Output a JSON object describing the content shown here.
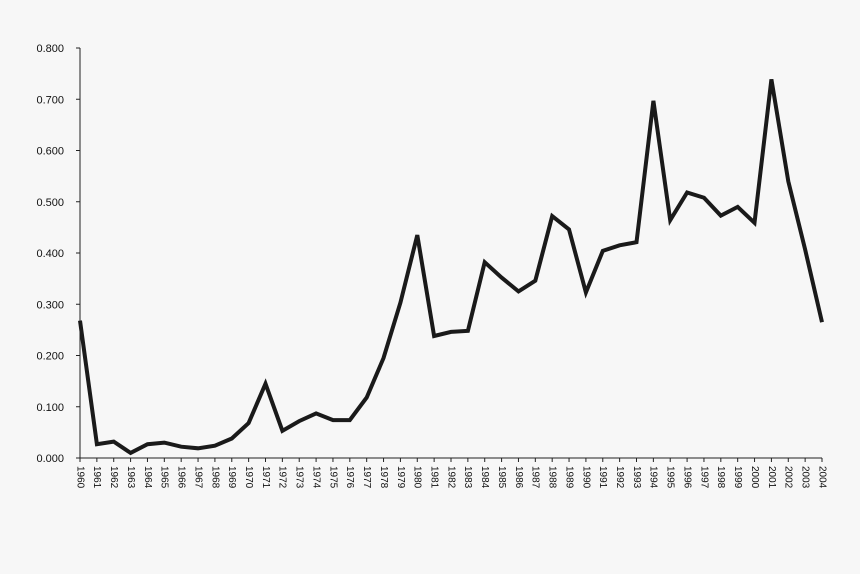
{
  "chart_data": {
    "type": "line",
    "title": "",
    "xlabel": "",
    "ylabel": "",
    "x": [
      "1960",
      "1961",
      "1962",
      "1963",
      "1964",
      "1965",
      "1966",
      "1967",
      "1968",
      "1969",
      "1970",
      "1971",
      "1972",
      "1973",
      "1974",
      "1975",
      "1976",
      "1977",
      "1978",
      "1979",
      "1980",
      "1981",
      "1982",
      "1983",
      "1984",
      "1985",
      "1986",
      "1987",
      "1988",
      "1989",
      "1990",
      "1991",
      "1992",
      "1993",
      "1994",
      "1995",
      "1996",
      "1997",
      "1998",
      "1999",
      "2000",
      "2001",
      "2002",
      "2003",
      "2004"
    ],
    "series": [
      {
        "values": [
          0.268,
          0.027,
          0.032,
          0.01,
          0.027,
          0.03,
          0.022,
          0.019,
          0.024,
          0.038,
          0.068,
          0.145,
          0.053,
          0.072,
          0.087,
          0.074,
          0.074,
          0.118,
          0.195,
          0.303,
          0.435,
          0.238,
          0.246,
          0.248,
          0.382,
          0.352,
          0.325,
          0.346,
          0.472,
          0.446,
          0.323,
          0.404,
          0.415,
          0.421,
          0.697,
          0.464,
          0.518,
          0.508,
          0.473,
          0.49,
          0.459,
          0.739,
          0.54,
          0.407,
          0.265
        ],
        "color": "#1a1a1a"
      }
    ],
    "ylim": [
      0,
      0.8
    ],
    "yticks": [
      "0.000",
      "0.100",
      "0.200",
      "0.300",
      "0.400",
      "0.500",
      "0.600",
      "0.700",
      "0.800"
    ],
    "grid": false,
    "legend": "none"
  }
}
